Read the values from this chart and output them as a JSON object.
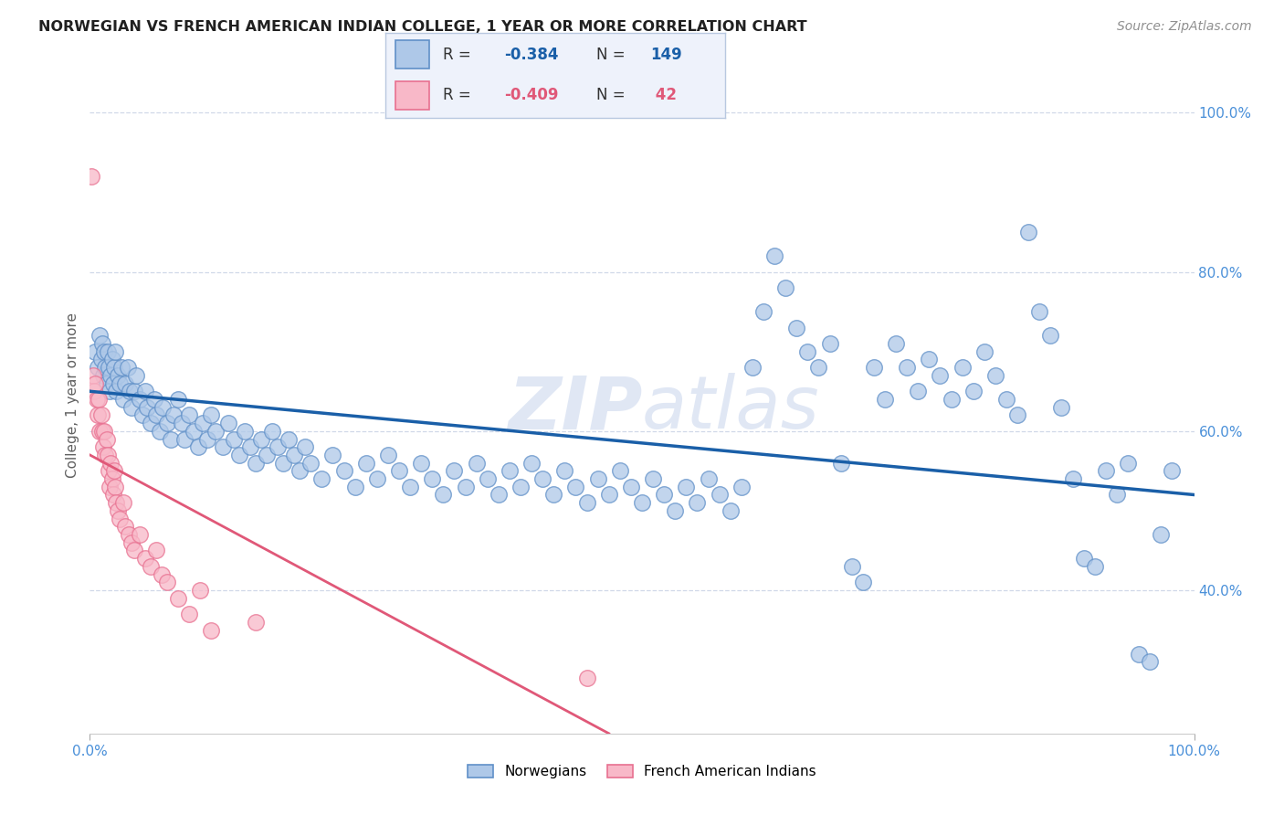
{
  "title": "NORWEGIAN VS FRENCH AMERICAN INDIAN COLLEGE, 1 YEAR OR MORE CORRELATION CHART",
  "source": "Source: ZipAtlas.com",
  "ylabel": "College, 1 year or more",
  "watermark": "ZIPatlas",
  "legend_blue_r": "-0.384",
  "legend_blue_n": "149",
  "legend_pink_r": "-0.409",
  "legend_pink_n": "42",
  "legend_label_blue": "Norwegians",
  "legend_label_pink": "French American Indians",
  "blue_color": "#aec8e8",
  "blue_edge_color": "#6090c8",
  "blue_line_color": "#1a5fa8",
  "pink_color": "#f8b8c8",
  "pink_edge_color": "#e87090",
  "pink_line_color": "#e05878",
  "background_color": "#ffffff",
  "grid_color": "#d0d8e8",
  "title_color": "#202020",
  "source_color": "#909090",
  "ylabel_color": "#606060",
  "tick_color": "#4a90d9",
  "xlim": [
    0,
    100
  ],
  "ylim": [
    22,
    107
  ],
  "yticks": [
    40,
    60,
    80,
    100
  ],
  "ytick_labels": [
    "40.0%",
    "60.0%",
    "80.0%",
    "100.0%"
  ],
  "xticks": [
    0,
    100
  ],
  "xtick_labels": [
    "0.0%",
    "100.0%"
  ],
  "blue_line_x": [
    0,
    100
  ],
  "blue_line_y": [
    65.0,
    52.0
  ],
  "pink_line_x": [
    0,
    47
  ],
  "pink_line_y": [
    57.0,
    22.0
  ],
  "blue_points": [
    [
      0.5,
      70
    ],
    [
      0.7,
      68
    ],
    [
      0.9,
      72
    ],
    [
      1.0,
      69
    ],
    [
      1.1,
      71
    ],
    [
      1.2,
      67
    ],
    [
      1.3,
      70
    ],
    [
      1.4,
      68
    ],
    [
      1.5,
      66
    ],
    [
      1.6,
      70
    ],
    [
      1.7,
      68
    ],
    [
      1.8,
      65
    ],
    [
      1.9,
      67
    ],
    [
      2.0,
      69
    ],
    [
      2.1,
      66
    ],
    [
      2.2,
      68
    ],
    [
      2.3,
      70
    ],
    [
      2.4,
      65
    ],
    [
      2.5,
      67
    ],
    [
      2.7,
      66
    ],
    [
      2.9,
      68
    ],
    [
      3.0,
      64
    ],
    [
      3.2,
      66
    ],
    [
      3.4,
      68
    ],
    [
      3.6,
      65
    ],
    [
      3.8,
      63
    ],
    [
      4.0,
      65
    ],
    [
      4.2,
      67
    ],
    [
      4.5,
      64
    ],
    [
      4.8,
      62
    ],
    [
      5.0,
      65
    ],
    [
      5.2,
      63
    ],
    [
      5.5,
      61
    ],
    [
      5.8,
      64
    ],
    [
      6.0,
      62
    ],
    [
      6.3,
      60
    ],
    [
      6.6,
      63
    ],
    [
      7.0,
      61
    ],
    [
      7.3,
      59
    ],
    [
      7.6,
      62
    ],
    [
      8.0,
      64
    ],
    [
      8.3,
      61
    ],
    [
      8.6,
      59
    ],
    [
      9.0,
      62
    ],
    [
      9.4,
      60
    ],
    [
      9.8,
      58
    ],
    [
      10.2,
      61
    ],
    [
      10.6,
      59
    ],
    [
      11.0,
      62
    ],
    [
      11.4,
      60
    ],
    [
      12.0,
      58
    ],
    [
      12.5,
      61
    ],
    [
      13.0,
      59
    ],
    [
      13.5,
      57
    ],
    [
      14.0,
      60
    ],
    [
      14.5,
      58
    ],
    [
      15.0,
      56
    ],
    [
      15.5,
      59
    ],
    [
      16.0,
      57
    ],
    [
      16.5,
      60
    ],
    [
      17.0,
      58
    ],
    [
      17.5,
      56
    ],
    [
      18.0,
      59
    ],
    [
      18.5,
      57
    ],
    [
      19.0,
      55
    ],
    [
      19.5,
      58
    ],
    [
      20.0,
      56
    ],
    [
      21.0,
      54
    ],
    [
      22.0,
      57
    ],
    [
      23.0,
      55
    ],
    [
      24.0,
      53
    ],
    [
      25.0,
      56
    ],
    [
      26.0,
      54
    ],
    [
      27.0,
      57
    ],
    [
      28.0,
      55
    ],
    [
      29.0,
      53
    ],
    [
      30.0,
      56
    ],
    [
      31.0,
      54
    ],
    [
      32.0,
      52
    ],
    [
      33.0,
      55
    ],
    [
      34.0,
      53
    ],
    [
      35.0,
      56
    ],
    [
      36.0,
      54
    ],
    [
      37.0,
      52
    ],
    [
      38.0,
      55
    ],
    [
      39.0,
      53
    ],
    [
      40.0,
      56
    ],
    [
      41.0,
      54
    ],
    [
      42.0,
      52
    ],
    [
      43.0,
      55
    ],
    [
      44.0,
      53
    ],
    [
      45.0,
      51
    ],
    [
      46.0,
      54
    ],
    [
      47.0,
      52
    ],
    [
      48.0,
      55
    ],
    [
      49.0,
      53
    ],
    [
      50.0,
      51
    ],
    [
      51.0,
      54
    ],
    [
      52.0,
      52
    ],
    [
      53.0,
      50
    ],
    [
      54.0,
      53
    ],
    [
      55.0,
      51
    ],
    [
      56.0,
      54
    ],
    [
      57.0,
      52
    ],
    [
      58.0,
      50
    ],
    [
      59.0,
      53
    ],
    [
      60.0,
      68
    ],
    [
      61.0,
      75
    ],
    [
      62.0,
      82
    ],
    [
      63.0,
      78
    ],
    [
      64.0,
      73
    ],
    [
      65.0,
      70
    ],
    [
      66.0,
      68
    ],
    [
      67.0,
      71
    ],
    [
      68.0,
      56
    ],
    [
      69.0,
      43
    ],
    [
      70.0,
      41
    ],
    [
      71.0,
      68
    ],
    [
      72.0,
      64
    ],
    [
      73.0,
      71
    ],
    [
      74.0,
      68
    ],
    [
      75.0,
      65
    ],
    [
      76.0,
      69
    ],
    [
      77.0,
      67
    ],
    [
      78.0,
      64
    ],
    [
      79.0,
      68
    ],
    [
      80.0,
      65
    ],
    [
      81.0,
      70
    ],
    [
      82.0,
      67
    ],
    [
      83.0,
      64
    ],
    [
      84.0,
      62
    ],
    [
      85.0,
      85
    ],
    [
      86.0,
      75
    ],
    [
      87.0,
      72
    ],
    [
      88.0,
      63
    ],
    [
      89.0,
      54
    ],
    [
      90.0,
      44
    ],
    [
      91.0,
      43
    ],
    [
      92.0,
      55
    ],
    [
      93.0,
      52
    ],
    [
      94.0,
      56
    ],
    [
      95.0,
      32
    ],
    [
      96.0,
      31
    ],
    [
      97.0,
      47
    ],
    [
      98.0,
      55
    ]
  ],
  "pink_points": [
    [
      0.15,
      92
    ],
    [
      0.3,
      67
    ],
    [
      0.4,
      65
    ],
    [
      0.5,
      66
    ],
    [
      0.6,
      64
    ],
    [
      0.7,
      62
    ],
    [
      0.8,
      64
    ],
    [
      0.9,
      60
    ],
    [
      1.0,
      62
    ],
    [
      1.1,
      60
    ],
    [
      1.2,
      58
    ],
    [
      1.3,
      60
    ],
    [
      1.4,
      57
    ],
    [
      1.5,
      59
    ],
    [
      1.6,
      57
    ],
    [
      1.7,
      55
    ],
    [
      1.8,
      53
    ],
    [
      1.9,
      56
    ],
    [
      2.0,
      54
    ],
    [
      2.1,
      52
    ],
    [
      2.2,
      55
    ],
    [
      2.3,
      53
    ],
    [
      2.4,
      51
    ],
    [
      2.5,
      50
    ],
    [
      2.7,
      49
    ],
    [
      3.0,
      51
    ],
    [
      3.2,
      48
    ],
    [
      3.5,
      47
    ],
    [
      3.8,
      46
    ],
    [
      4.0,
      45
    ],
    [
      4.5,
      47
    ],
    [
      5.0,
      44
    ],
    [
      5.5,
      43
    ],
    [
      6.0,
      45
    ],
    [
      6.5,
      42
    ],
    [
      7.0,
      41
    ],
    [
      8.0,
      39
    ],
    [
      9.0,
      37
    ],
    [
      10.0,
      40
    ],
    [
      11.0,
      35
    ],
    [
      15.0,
      36
    ],
    [
      45.0,
      29
    ]
  ]
}
